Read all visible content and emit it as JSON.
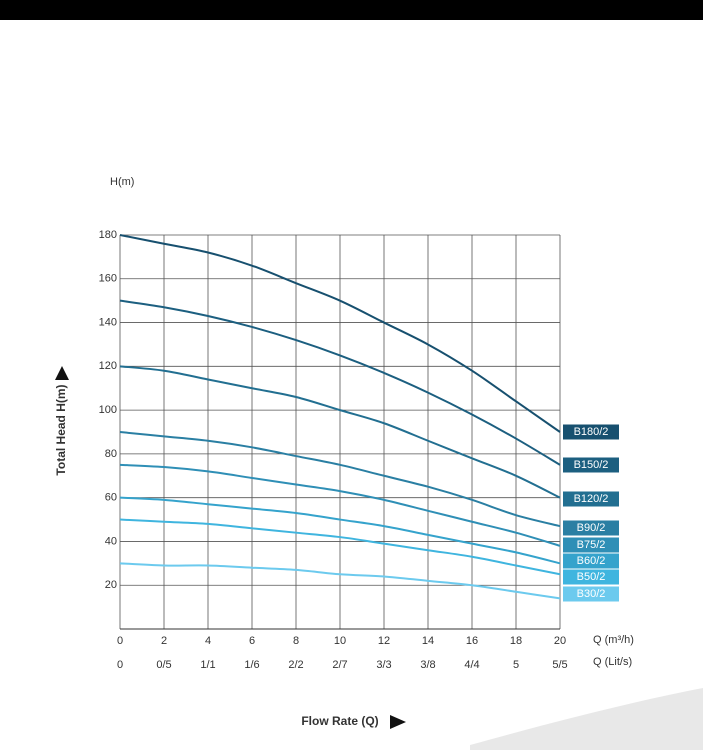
{
  "chart_data": {
    "type": "line",
    "y_unit_label": "H(m)",
    "y_axis_label": "Total Head H(m)",
    "x_unit_label": "Q (m³/h)",
    "x2_unit_label": "Q (Lit/s)",
    "x_axis_label": "Flow Rate (Q)",
    "x": [
      0,
      2,
      4,
      6,
      8,
      10,
      12,
      14,
      16,
      18,
      20
    ],
    "x2_labels": [
      "0",
      "0/5",
      "1/1",
      "1/6",
      "2/2",
      "2/7",
      "3/3",
      "3/8",
      "4/4",
      "5",
      "5/5"
    ],
    "xlim": [
      0,
      20
    ],
    "xticks": [
      0,
      2,
      4,
      6,
      8,
      10,
      12,
      14,
      16,
      18,
      20
    ],
    "ylim": [
      0,
      180
    ],
    "yticks": [
      20,
      40,
      60,
      80,
      100,
      120,
      140,
      160,
      180
    ],
    "grid": true,
    "series": [
      {
        "name": "B180/2",
        "color": "#17506f",
        "values": [
          180,
          176,
          172,
          166,
          158,
          150,
          140,
          130,
          118,
          104,
          90
        ]
      },
      {
        "name": "B150/2",
        "color": "#1c5f80",
        "values": [
          150,
          147,
          143,
          138,
          132,
          125,
          117,
          108,
          98,
          87,
          75
        ]
      },
      {
        "name": "B120/2",
        "color": "#226f91",
        "values": [
          120,
          118,
          114,
          110,
          106,
          100,
          94,
          86,
          78,
          70,
          60
        ]
      },
      {
        "name": "B90/2",
        "color": "#2a7fa3",
        "values": [
          90,
          88,
          86,
          83,
          79,
          75,
          70,
          65,
          59,
          52,
          47
        ]
      },
      {
        "name": "B75/2",
        "color": "#2f8fb6",
        "values": [
          75,
          74,
          72,
          69,
          66,
          63,
          59,
          54,
          49,
          44,
          38
        ]
      },
      {
        "name": "B60/2",
        "color": "#35a3cc",
        "values": [
          60,
          59,
          57,
          55,
          53,
          50,
          47,
          43,
          39,
          35,
          30
        ]
      },
      {
        "name": "B50/2",
        "color": "#3fb5df",
        "values": [
          50,
          49,
          48,
          46,
          44,
          42,
          39,
          36,
          33,
          29,
          25
        ]
      },
      {
        "name": "B30/2",
        "color": "#6ccaee",
        "values": [
          30,
          29,
          29,
          28,
          27,
          25,
          24,
          22,
          20,
          17,
          14
        ]
      }
    ]
  }
}
